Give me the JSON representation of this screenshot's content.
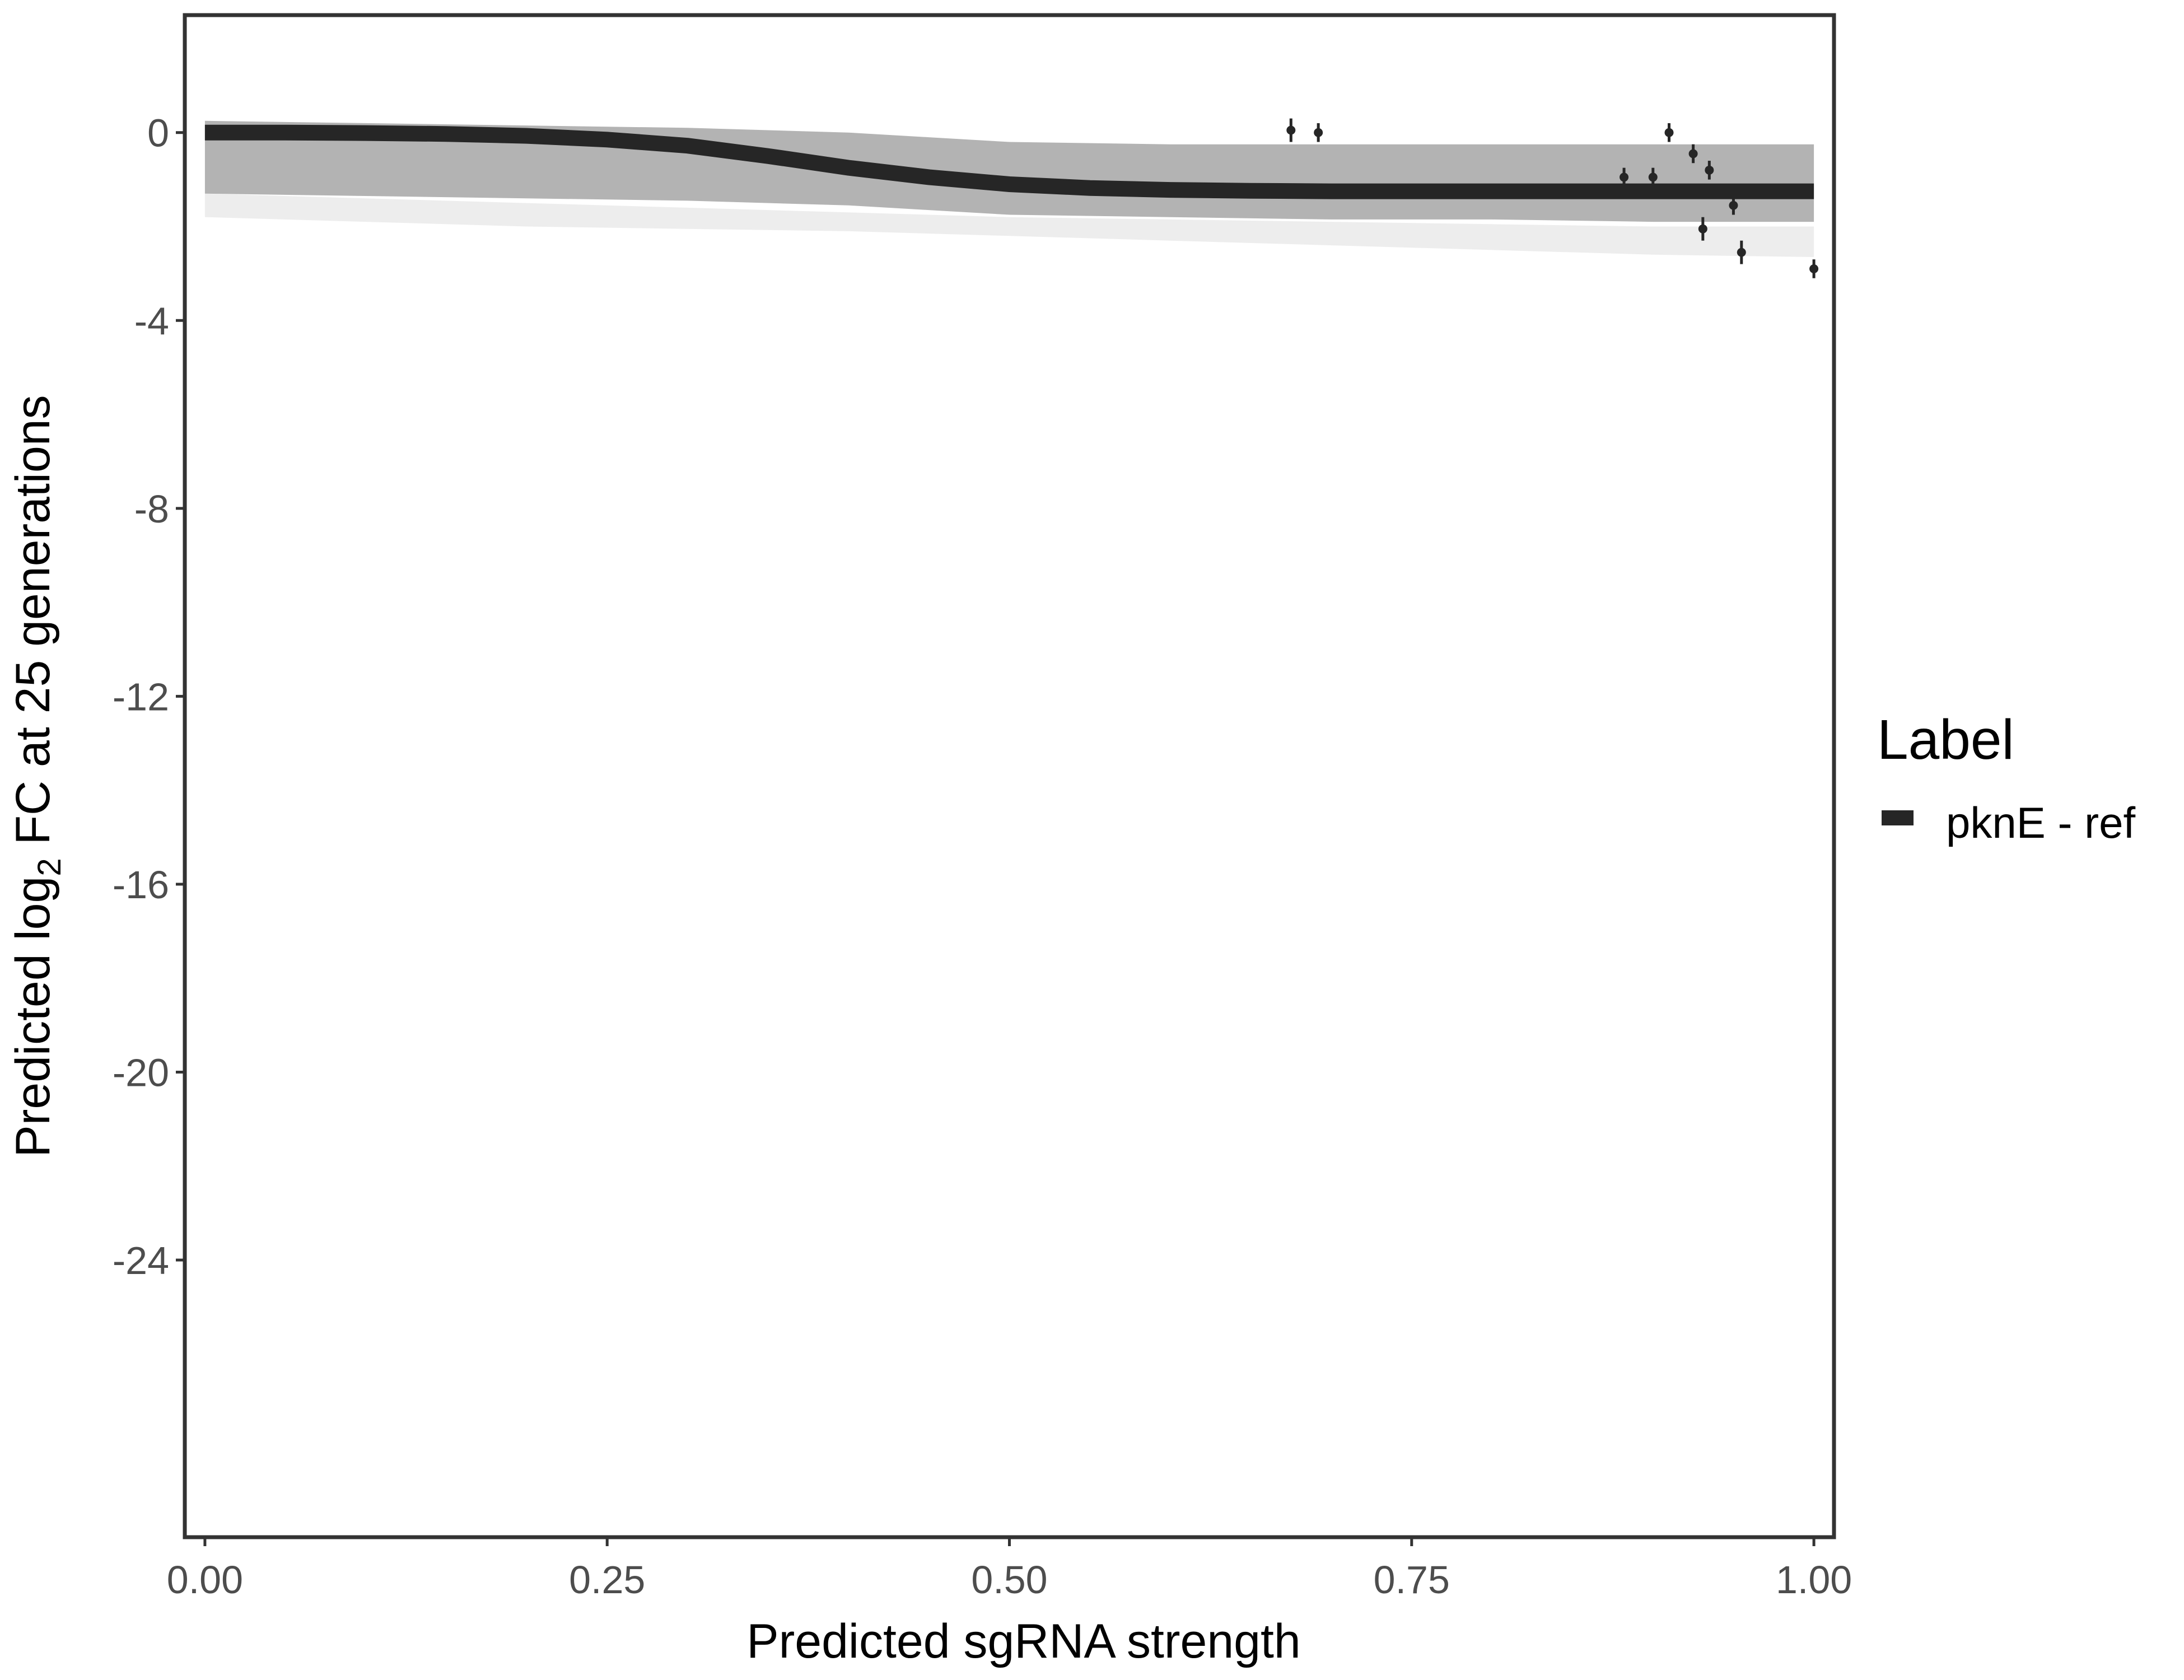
{
  "chart_data": {
    "type": "line",
    "xlabel": "Predicted sgRNA strength",
    "ylabel_prefix": "Predicted  log",
    "ylabel_subscript": "2",
    "ylabel_suffix": " FC at 25 generations",
    "xlim": [
      -0.0125,
      1.0125
    ],
    "ylim": [
      -29.9,
      2.5
    ],
    "x_ticks": [
      {
        "value": 0.0,
        "label": "0.00"
      },
      {
        "value": 0.25,
        "label": "0.25"
      },
      {
        "value": 0.5,
        "label": "0.50"
      },
      {
        "value": 0.75,
        "label": "0.75"
      },
      {
        "value": 1.0,
        "label": "1.00"
      }
    ],
    "y_ticks": [
      {
        "value": 0,
        "label": "0"
      },
      {
        "value": -4,
        "label": "-4"
      },
      {
        "value": -8,
        "label": "-8"
      },
      {
        "value": -12,
        "label": "-12"
      },
      {
        "value": -16,
        "label": "-16"
      },
      {
        "value": -20,
        "label": "-20"
      },
      {
        "value": -24,
        "label": "-24"
      }
    ],
    "grid": false,
    "legend": {
      "title": "Label",
      "position": "right",
      "entries": [
        {
          "label": "pknE - ref",
          "color": "#262626"
        }
      ]
    },
    "fit_line": {
      "name": "pknE - ref",
      "color": "#262626",
      "x": [
        0.0,
        0.05,
        0.1,
        0.15,
        0.2,
        0.25,
        0.3,
        0.35,
        0.4,
        0.45,
        0.5,
        0.55,
        0.6,
        0.65,
        0.7,
        0.75,
        0.8,
        0.85,
        0.9,
        0.95,
        1.0
      ],
      "y": [
        0.0,
        0.0,
        -0.01,
        -0.03,
        -0.07,
        -0.15,
        -0.28,
        -0.5,
        -0.75,
        -0.95,
        -1.1,
        -1.18,
        -1.22,
        -1.24,
        -1.25,
        -1.25,
        -1.25,
        -1.25,
        -1.25,
        -1.25,
        -1.25
      ]
    },
    "posterior_band": {
      "color": "#a6a6a6",
      "x": [
        0.0,
        0.1,
        0.2,
        0.3,
        0.4,
        0.45,
        0.5,
        0.6,
        0.7,
        0.8,
        0.9,
        1.0
      ],
      "upper": [
        0.25,
        0.2,
        0.15,
        0.1,
        0.0,
        -0.1,
        -0.2,
        -0.25,
        -0.25,
        -0.25,
        -0.25,
        -0.25
      ],
      "lower": [
        -1.3,
        -1.35,
        -1.4,
        -1.45,
        -1.55,
        -1.65,
        -1.75,
        -1.8,
        -1.85,
        -1.85,
        -1.9,
        -1.9
      ],
      "faint_upper": [
        -1.3,
        -1.4,
        -1.5,
        -1.6,
        -1.7,
        -1.75,
        -1.8,
        -1.85,
        -1.9,
        -1.95,
        -2.0,
        -2.0
      ],
      "faint_lower": [
        -1.8,
        -1.9,
        -2.0,
        -2.05,
        -2.1,
        -2.15,
        -2.2,
        -2.3,
        -2.4,
        -2.5,
        -2.6,
        -2.65
      ]
    },
    "points": [
      {
        "x": 0.675,
        "y": 0.05,
        "err": 0.25
      },
      {
        "x": 0.692,
        "y": 0.0,
        "err": 0.2
      },
      {
        "x": 0.882,
        "y": -0.95,
        "err": 0.2
      },
      {
        "x": 0.9,
        "y": -0.95,
        "err": 0.2
      },
      {
        "x": 0.91,
        "y": 0.0,
        "err": 0.2
      },
      {
        "x": 0.925,
        "y": -0.45,
        "err": 0.2
      },
      {
        "x": 0.931,
        "y": -2.05,
        "err": 0.25
      },
      {
        "x": 0.935,
        "y": -0.8,
        "err": 0.2
      },
      {
        "x": 0.95,
        "y": -1.55,
        "err": 0.2
      },
      {
        "x": 0.955,
        "y": -2.55,
        "err": 0.25
      },
      {
        "x": 1.0,
        "y": -2.9,
        "err": 0.2
      }
    ]
  }
}
